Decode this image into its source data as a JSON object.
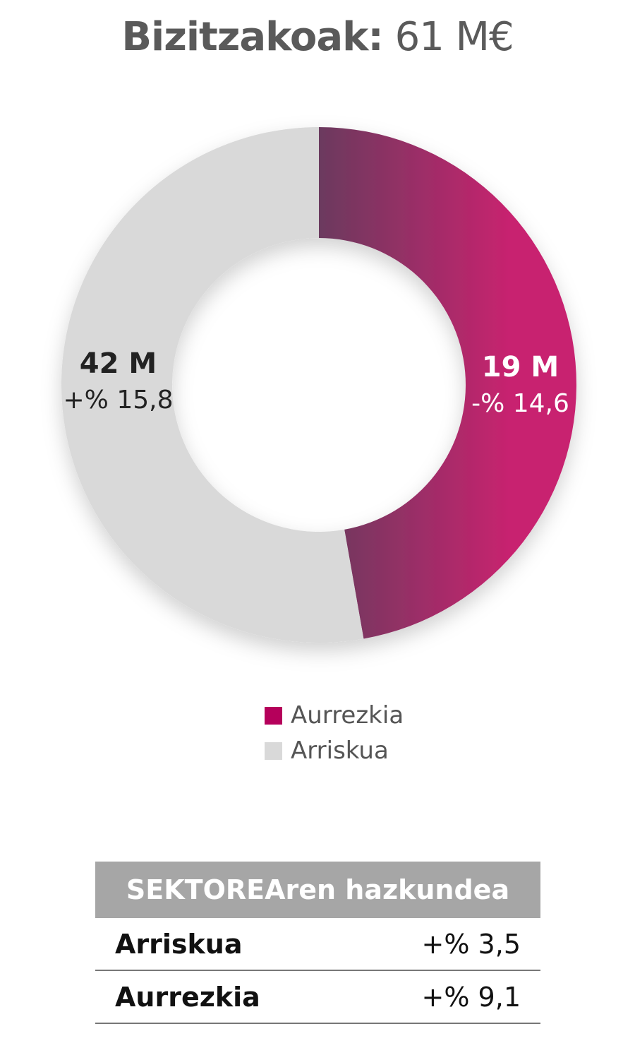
{
  "title": {
    "label": "Bizitzakoak:",
    "value": "61 M€"
  },
  "chart_data": {
    "type": "pie",
    "subtype": "donut",
    "title": "Bizitzakoak: 61 M€",
    "slices": [
      {
        "name": "Aurrezkia",
        "value": 19,
        "value_label": "19 M",
        "change_label": "-% 14,6",
        "color": "#c2185b",
        "gradient": [
          "#6b3a5e",
          "#c8236f"
        ]
      },
      {
        "name": "Arriskua",
        "value": 42,
        "value_label": "42 M",
        "change_label": "+% 15,8",
        "color": "#d9d9d9"
      }
    ],
    "legend": {
      "placement": "bottom",
      "entries": [
        {
          "label": "Aurrezkia",
          "color": "#b5005b"
        },
        {
          "label": "Arriskua",
          "color": "#d9d9d9"
        }
      ]
    }
  },
  "table": {
    "header": "SEKTOREAren hazkundea",
    "rows": [
      {
        "name": "Arriskua",
        "value": "+% 3,5"
      },
      {
        "name": "Aurrezkia",
        "value": "+% 9,1"
      }
    ]
  }
}
